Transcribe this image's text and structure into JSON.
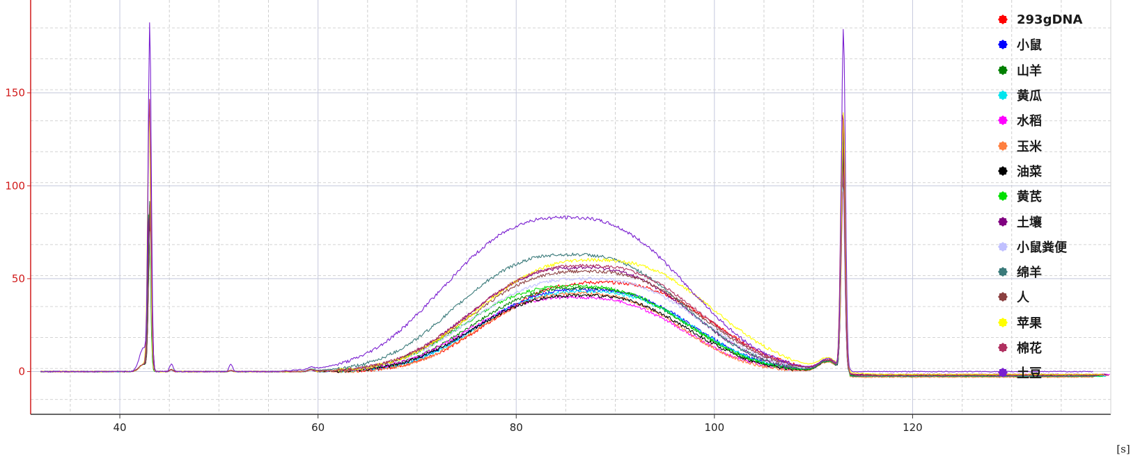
{
  "chart_data": {
    "type": "line",
    "title": "",
    "xlabel": "",
    "ylabel": "",
    "x_unit": "[s]",
    "xlim": [
      31,
      140
    ],
    "ylim": [
      -23,
      200
    ],
    "x_ticks": [
      40,
      60,
      80,
      100,
      120
    ],
    "y_ticks": [
      0,
      50,
      100,
      150
    ],
    "grid": true,
    "legend_position": "top-right",
    "peaks": {
      "lower_marker_s": 43.0,
      "upper_marker_s": 113.0
    },
    "series": [
      {
        "name": "293gDNA",
        "color": "#ff0000",
        "lower_peak": 82,
        "upper_peak": 105,
        "hump_center": 88.5,
        "hump_height": 48,
        "hump_width": 16.5,
        "baseline_end": -2
      },
      {
        "name": "小鼠",
        "color": "#0000ff",
        "lower_peak": 90,
        "upper_peak": 110,
        "hump_center": 87.0,
        "hump_height": 44,
        "hump_width": 16.0,
        "baseline_end": -2.5
      },
      {
        "name": "山羊",
        "color": "#008000",
        "lower_peak": 88,
        "upper_peak": 130,
        "hump_center": 86.5,
        "hump_height": 45,
        "hump_width": 16.0,
        "baseline_end": -2
      },
      {
        "name": "黄瓜",
        "color": "#00e5ee",
        "lower_peak": 80,
        "upper_peak": 115,
        "hump_center": 87.0,
        "hump_height": 43,
        "hump_width": 16.0,
        "baseline_end": -2.5
      },
      {
        "name": "水稻",
        "color": "#ff00ff",
        "lower_peak": 72,
        "upper_peak": 112,
        "hump_center": 86.0,
        "hump_height": 40,
        "hump_width": 16.0,
        "baseline_end": -1.5
      },
      {
        "name": "玉米",
        "color": "#ff7f3f",
        "lower_peak": 76,
        "upper_peak": 118,
        "hump_center": 86.5,
        "hump_height": 42,
        "hump_width": 15.0,
        "baseline_end": -3
      },
      {
        "name": "油菜",
        "color": "#000000",
        "lower_peak": 78,
        "upper_peak": 120,
        "hump_center": 86.5,
        "hump_height": 41,
        "hump_width": 16.0,
        "baseline_end": -2
      },
      {
        "name": "黄芪",
        "color": "#00e000",
        "lower_peak": 84,
        "upper_peak": 125,
        "hump_center": 86.0,
        "hump_height": 46,
        "hump_width": 16.5,
        "baseline_end": -2.5
      },
      {
        "name": "土壤",
        "color": "#800080",
        "lower_peak": 86,
        "upper_peak": 135,
        "hump_center": 86.5,
        "hump_height": 56,
        "hump_width": 16.5,
        "baseline_end": -1.5
      },
      {
        "name": "小鼠粪便",
        "color": "#c0c0ff",
        "lower_peak": 74,
        "upper_peak": 100,
        "hump_center": 87.0,
        "hump_height": 50,
        "hump_width": 17.0,
        "baseline_end": -2
      },
      {
        "name": "绵羊",
        "color": "#3a7a7a",
        "lower_peak": 92,
        "upper_peak": 128,
        "hump_center": 85.5,
        "hump_height": 63,
        "hump_width": 17.0,
        "baseline_end": -2.5
      },
      {
        "name": "人",
        "color": "#8b4040",
        "lower_peak": 94,
        "upper_peak": 122,
        "hump_center": 87.0,
        "hump_height": 54,
        "hump_width": 17.0,
        "baseline_end": -2
      },
      {
        "name": "苹果",
        "color": "#ffff00",
        "lower_peak": 140,
        "upper_peak": 138,
        "hump_center": 88.0,
        "hump_height": 60,
        "hump_width": 17.5,
        "baseline_end": -1.5
      },
      {
        "name": "棉花",
        "color": "#b03060",
        "lower_peak": 146,
        "upper_peak": 140,
        "hump_center": 87.0,
        "hump_height": 57,
        "hump_width": 17.0,
        "baseline_end": -2
      },
      {
        "name": "土豆",
        "color": "#7a1fd0",
        "lower_peak": 184,
        "upper_peak": 183,
        "hump_center": 85.0,
        "hump_height": 83,
        "hump_width": 18.0,
        "baseline_end": 0
      }
    ]
  }
}
